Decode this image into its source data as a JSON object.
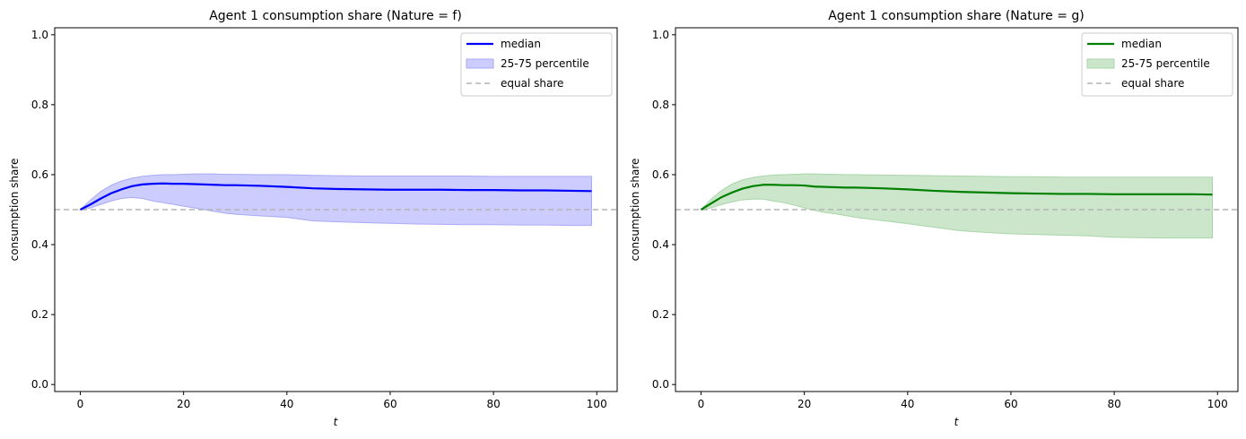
{
  "chart_data": [
    {
      "type": "line",
      "title": "Agent 1 consumption share (Nature = f)",
      "xlabel": "t",
      "ylabel": "consumption share",
      "xlim": [
        -4.95,
        103.95
      ],
      "ylim": [
        -0.02,
        1.02
      ],
      "xticks": [
        0,
        20,
        40,
        60,
        80,
        100
      ],
      "yticks": [
        0.0,
        0.2,
        0.4,
        0.6,
        0.8,
        1.0
      ],
      "grid": false,
      "legend_position": "top-right",
      "colors": {
        "line": "#0000ff",
        "band_fill": "#ccccff",
        "band_edge": "#aaaaf5",
        "reference": "#b3b3b3"
      },
      "series": [
        {
          "name": "median",
          "kind": "line",
          "x": [
            0,
            2,
            4,
            6,
            8,
            10,
            12,
            14,
            16,
            18,
            20,
            22,
            24,
            26,
            28,
            30,
            35,
            40,
            45,
            50,
            55,
            60,
            65,
            70,
            75,
            80,
            85,
            90,
            95,
            99
          ],
          "y": [
            0.5,
            0.515,
            0.532,
            0.547,
            0.558,
            0.567,
            0.572,
            0.574,
            0.575,
            0.574,
            0.574,
            0.573,
            0.572,
            0.571,
            0.57,
            0.57,
            0.568,
            0.565,
            0.561,
            0.559,
            0.558,
            0.557,
            0.557,
            0.557,
            0.556,
            0.556,
            0.555,
            0.555,
            0.554,
            0.553
          ]
        },
        {
          "name": "25-75 percentile",
          "kind": "band",
          "x": [
            0,
            2,
            4,
            6,
            8,
            10,
            12,
            14,
            16,
            18,
            20,
            22,
            24,
            26,
            28,
            30,
            35,
            40,
            45,
            50,
            55,
            60,
            65,
            70,
            75,
            80,
            85,
            90,
            95,
            99
          ],
          "upper": [
            0.5,
            0.528,
            0.552,
            0.57,
            0.582,
            0.59,
            0.595,
            0.598,
            0.6,
            0.6,
            0.601,
            0.602,
            0.602,
            0.602,
            0.601,
            0.601,
            0.6,
            0.6,
            0.598,
            0.597,
            0.596,
            0.596,
            0.596,
            0.596,
            0.596,
            0.595,
            0.595,
            0.595,
            0.595,
            0.595
          ],
          "lower": [
            0.5,
            0.505,
            0.515,
            0.525,
            0.532,
            0.535,
            0.532,
            0.525,
            0.52,
            0.515,
            0.51,
            0.505,
            0.5,
            0.495,
            0.49,
            0.487,
            0.482,
            0.478,
            0.468,
            0.465,
            0.463,
            0.461,
            0.459,
            0.458,
            0.457,
            0.457,
            0.456,
            0.456,
            0.455,
            0.455
          ]
        },
        {
          "name": "equal share",
          "kind": "hline",
          "y": 0.5
        }
      ]
    },
    {
      "type": "line",
      "title": "Agent 1 consumption share (Nature = g)",
      "xlabel": "t",
      "ylabel": "consumption share",
      "xlim": [
        -4.95,
        103.95
      ],
      "ylim": [
        -0.02,
        1.02
      ],
      "xticks": [
        0,
        20,
        40,
        60,
        80,
        100
      ],
      "yticks": [
        0.0,
        0.2,
        0.4,
        0.6,
        0.8,
        1.0
      ],
      "grid": false,
      "legend_position": "top-right",
      "colors": {
        "line": "#008000",
        "band_fill": "#cce6cc",
        "band_edge": "#a8d5a8",
        "reference": "#b3b3b3"
      },
      "series": [
        {
          "name": "median",
          "kind": "line",
          "x": [
            0,
            2,
            4,
            6,
            8,
            10,
            12,
            14,
            16,
            18,
            20,
            22,
            24,
            26,
            28,
            30,
            35,
            40,
            45,
            50,
            55,
            60,
            65,
            70,
            75,
            80,
            85,
            90,
            95,
            99
          ],
          "y": [
            0.5,
            0.518,
            0.536,
            0.549,
            0.56,
            0.567,
            0.571,
            0.571,
            0.57,
            0.57,
            0.569,
            0.566,
            0.565,
            0.564,
            0.563,
            0.563,
            0.561,
            0.558,
            0.554,
            0.551,
            0.549,
            0.547,
            0.546,
            0.545,
            0.545,
            0.544,
            0.544,
            0.544,
            0.544,
            0.543
          ]
        },
        {
          "name": "25-75 percentile",
          "kind": "band",
          "x": [
            0,
            2,
            4,
            6,
            8,
            10,
            12,
            14,
            16,
            18,
            20,
            22,
            24,
            26,
            28,
            30,
            35,
            40,
            45,
            50,
            55,
            60,
            65,
            70,
            75,
            80,
            85,
            90,
            95,
            99
          ],
          "upper": [
            0.5,
            0.53,
            0.555,
            0.573,
            0.585,
            0.592,
            0.596,
            0.599,
            0.6,
            0.601,
            0.602,
            0.602,
            0.601,
            0.601,
            0.6,
            0.6,
            0.599,
            0.598,
            0.597,
            0.596,
            0.595,
            0.594,
            0.594,
            0.593,
            0.593,
            0.593,
            0.593,
            0.593,
            0.593,
            0.593
          ],
          "lower": [
            0.5,
            0.505,
            0.515,
            0.522,
            0.528,
            0.53,
            0.53,
            0.525,
            0.52,
            0.513,
            0.505,
            0.498,
            0.492,
            0.488,
            0.483,
            0.478,
            0.469,
            0.46,
            0.45,
            0.44,
            0.435,
            0.431,
            0.429,
            0.427,
            0.425,
            0.421,
            0.42,
            0.419,
            0.419,
            0.419
          ]
        },
        {
          "name": "equal share",
          "kind": "hline",
          "y": 0.5
        }
      ]
    }
  ]
}
